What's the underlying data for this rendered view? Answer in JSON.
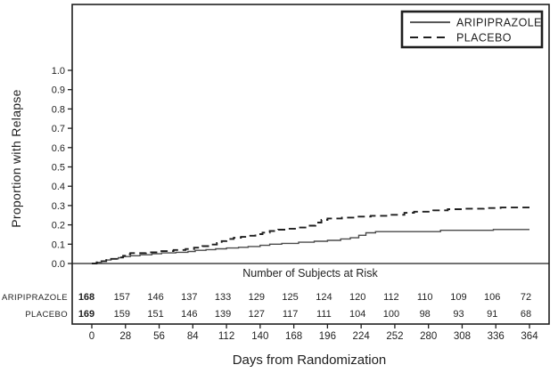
{
  "figure": {
    "background": "#ffffff",
    "ink_color": "#1f1f1f",
    "solid_series_color": "#4a4a4a",
    "dashed_series_color": "#1f1f1f"
  },
  "chart_data": {
    "type": "line",
    "variant": "kaplan_meier_step",
    "title": "",
    "xlabel": "Days from Randomization",
    "ylabel": "Proportion with Relapse",
    "grid": false,
    "legend_position": "top-right",
    "xlim": [
      0,
      380
    ],
    "ylim": [
      0,
      1.35
    ],
    "x_ticks": [
      0,
      28,
      56,
      84,
      112,
      140,
      168,
      196,
      224,
      252,
      280,
      308,
      336,
      364
    ],
    "y_tick_labels": [
      "0.0",
      "0.1",
      "0.2",
      "0.3",
      "0.4",
      "0.5",
      "0.6",
      "0.7",
      "0.8",
      "0.9",
      "1.0"
    ],
    "series": [
      {
        "name": "ARIPIPRAZOLE",
        "line_style": "solid",
        "points": [
          [
            0,
            0
          ],
          [
            4,
            0.006
          ],
          [
            8,
            0.012
          ],
          [
            12,
            0.018
          ],
          [
            16,
            0.024
          ],
          [
            22,
            0.03
          ],
          [
            26,
            0.036
          ],
          [
            32,
            0.04
          ],
          [
            40,
            0.045
          ],
          [
            50,
            0.05
          ],
          [
            58,
            0.055
          ],
          [
            70,
            0.058
          ],
          [
            80,
            0.062
          ],
          [
            86,
            0.068
          ],
          [
            95,
            0.072
          ],
          [
            103,
            0.076
          ],
          [
            112,
            0.08
          ],
          [
            122,
            0.084
          ],
          [
            130,
            0.088
          ],
          [
            140,
            0.094
          ],
          [
            148,
            0.1
          ],
          [
            158,
            0.104
          ],
          [
            172,
            0.11
          ],
          [
            185,
            0.115
          ],
          [
            196,
            0.12
          ],
          [
            207,
            0.127
          ],
          [
            215,
            0.133
          ],
          [
            222,
            0.146
          ],
          [
            228,
            0.159
          ],
          [
            236,
            0.165
          ],
          [
            290,
            0.172
          ],
          [
            334,
            0.176
          ],
          [
            364,
            0.176
          ]
        ]
      },
      {
        "name": "PLACEBO",
        "line_style": "dashed",
        "points": [
          [
            0,
            0
          ],
          [
            4,
            0.006
          ],
          [
            8,
            0.012
          ],
          [
            12,
            0.018
          ],
          [
            16,
            0.024
          ],
          [
            22,
            0.032
          ],
          [
            26,
            0.04
          ],
          [
            29,
            0.048
          ],
          [
            32,
            0.054
          ],
          [
            45,
            0.058
          ],
          [
            55,
            0.064
          ],
          [
            68,
            0.07
          ],
          [
            78,
            0.075
          ],
          [
            85,
            0.082
          ],
          [
            92,
            0.09
          ],
          [
            99,
            0.098
          ],
          [
            104,
            0.106
          ],
          [
            108,
            0.116
          ],
          [
            112,
            0.127
          ],
          [
            118,
            0.133
          ],
          [
            124,
            0.138
          ],
          [
            130,
            0.144
          ],
          [
            136,
            0.152
          ],
          [
            142,
            0.16
          ],
          [
            148,
            0.168
          ],
          [
            155,
            0.175
          ],
          [
            162,
            0.18
          ],
          [
            172,
            0.186
          ],
          [
            180,
            0.196
          ],
          [
            186,
            0.212
          ],
          [
            191,
            0.226
          ],
          [
            196,
            0.233
          ],
          [
            208,
            0.238
          ],
          [
            220,
            0.243
          ],
          [
            232,
            0.247
          ],
          [
            248,
            0.252
          ],
          [
            260,
            0.262
          ],
          [
            268,
            0.268
          ],
          [
            284,
            0.275
          ],
          [
            296,
            0.281
          ],
          [
            310,
            0.284
          ],
          [
            326,
            0.287
          ],
          [
            340,
            0.29
          ],
          [
            364,
            0.29
          ]
        ]
      }
    ],
    "risk_table": {
      "title": "Number of Subjects at Risk",
      "rows": [
        {
          "label": "ARIPIPRAZOLE",
          "values": [
            168,
            157,
            146,
            137,
            133,
            129,
            125,
            124,
            120,
            112,
            110,
            109,
            106,
            72
          ]
        },
        {
          "label": "PLACEBO",
          "values": [
            169,
            159,
            151,
            146,
            139,
            127,
            117,
            111,
            104,
            100,
            98,
            93,
            91,
            68
          ]
        }
      ]
    },
    "legend": {
      "entries": [
        {
          "label": "ARIPIPRAZOLE",
          "line_style": "solid"
        },
        {
          "label": "PLACEBO",
          "line_style": "dashed"
        }
      ]
    }
  }
}
